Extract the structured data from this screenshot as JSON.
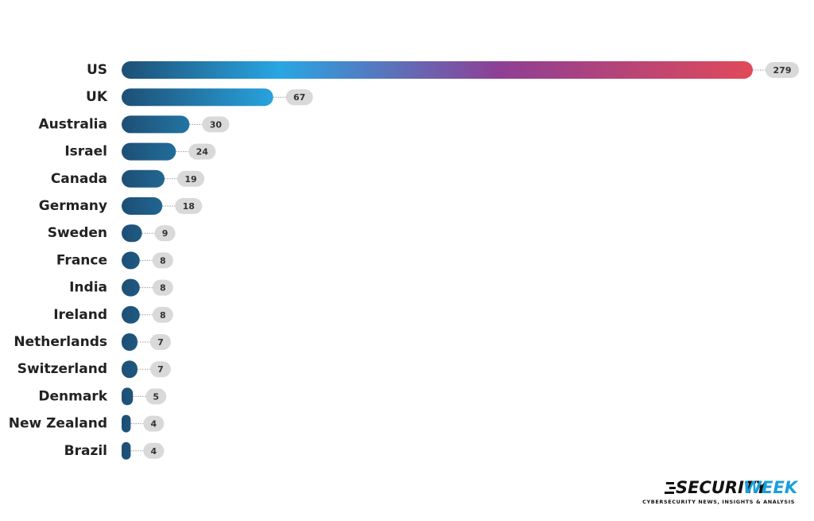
{
  "chart_data": {
    "type": "hbar",
    "categories": [
      "US",
      "UK",
      "Australia",
      "Israel",
      "Canada",
      "Germany",
      "Sweden",
      "France",
      "India",
      "Ireland",
      "Netherlands",
      "Switzerland",
      "Denmark",
      "New Zealand",
      "Brazil"
    ],
    "values": [
      279,
      67,
      30,
      24,
      19,
      18,
      9,
      8,
      8,
      8,
      7,
      7,
      5,
      4,
      4
    ],
    "colors": [
      "#1d4f75",
      "#29a6e2",
      "#8e3f94",
      "#e04a5a"
    ]
  },
  "brand": {
    "name_dark": "SECURITY",
    "name_blue": "WEEK",
    "tagline": "CYBERSECURITY NEWS, INSIGHTS & ANALYSIS"
  }
}
